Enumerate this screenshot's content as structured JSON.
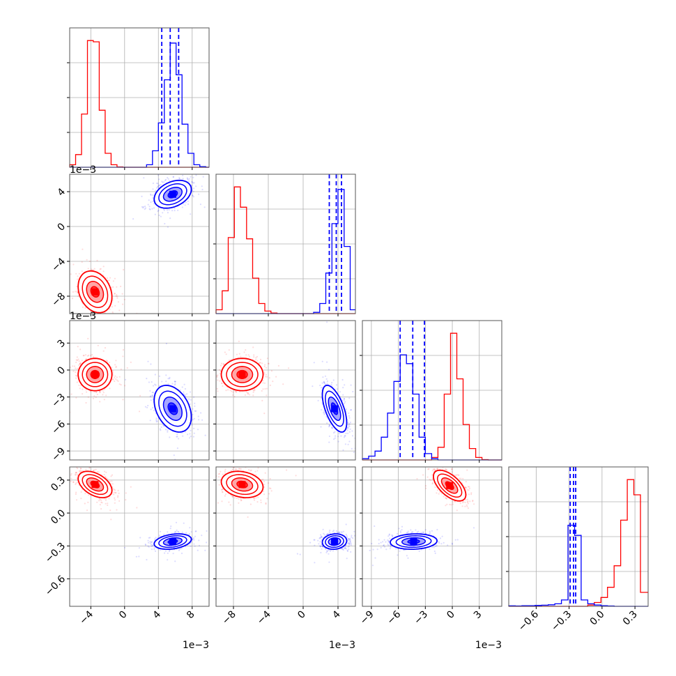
{
  "chart_data": {
    "type": "corner",
    "title": "",
    "n_params": 4,
    "series": [
      {
        "name": "",
        "color": "#ff0000"
      },
      {
        "name": "",
        "color": "#0000ff"
      }
    ],
    "params": [
      {
        "range": [
          -0.0065,
          0.01
        ],
        "ticks": [
          -0.004,
          0,
          0.004,
          0.008
        ],
        "tick_labels": [
          "−4",
          "0",
          "4",
          "8"
        ],
        "multiplier": "1e−3"
      },
      {
        "range": [
          -0.01,
          0.006
        ],
        "ticks": [
          -0.008,
          -0.004,
          0,
          0.004
        ],
        "tick_labels": [
          "−8",
          "−4",
          "0",
          "4"
        ],
        "multiplier": "1e−3"
      },
      {
        "range": [
          -0.01,
          0.0055
        ],
        "ticks": [
          -0.009,
          -0.006,
          -0.003,
          0,
          0.003
        ],
        "tick_labels": [
          "−9",
          "−6",
          "−3",
          "0",
          "3"
        ],
        "multiplier": "1e−3"
      },
      {
        "range": [
          -0.85,
          0.42
        ],
        "ticks": [
          -0.6,
          -0.3,
          0.0,
          0.3
        ],
        "tick_labels": [
          "−0.6",
          "−0.3",
          "0.0",
          "0.3"
        ],
        "multiplier": ""
      }
    ],
    "histograms": [
      {
        "param": 0,
        "edges": [
          -0.0065,
          -0.0058,
          -0.0051,
          -0.0044,
          -0.0037,
          -0.003,
          -0.0023,
          -0.0016,
          -0.0009,
          -0.0002,
          0.0005,
          0.0012,
          0.0019,
          0.0026,
          0.0033,
          0.004,
          0.0047,
          0.0054,
          0.0061,
          0.0068,
          0.0075,
          0.0082,
          0.0089,
          0.0096,
          0.01
        ],
        "red": [
          2,
          10,
          42,
          100,
          99,
          45,
          11,
          2,
          0.3,
          0,
          0,
          0,
          0,
          0,
          0,
          0,
          0,
          0,
          0,
          0,
          0,
          0,
          0,
          0
        ],
        "blue": [
          0,
          0,
          0,
          0,
          0,
          0,
          0,
          0,
          0,
          0,
          0,
          0,
          0,
          2,
          13,
          35,
          69,
          98,
          73,
          34,
          11,
          2,
          0.5,
          0
        ],
        "quantiles_blue": [
          0.0044,
          0.0054,
          0.0064
        ]
      },
      {
        "param": 1,
        "edges": [
          -0.01,
          -0.0093,
          -0.0086,
          -0.0079,
          -0.0072,
          -0.0065,
          -0.0058,
          -0.0051,
          -0.0044,
          -0.0037,
          -0.003,
          -0.0023,
          -0.0016,
          -0.0009,
          -0.0002,
          0.0005,
          0.0012,
          0.0019,
          0.0026,
          0.0033,
          0.004,
          0.0047,
          0.0054,
          0.006
        ],
        "red": [
          3,
          18,
          60,
          100,
          84,
          59,
          28,
          8,
          2,
          0.5,
          0,
          0,
          0,
          0,
          0,
          0,
          0,
          0,
          0,
          0,
          0,
          0,
          0
        ],
        "blue": [
          0,
          0,
          0,
          0,
          0,
          0,
          0,
          0,
          0,
          0,
          0,
          0,
          0,
          0,
          0,
          0,
          1,
          8,
          32,
          71,
          98,
          53,
          3
        ],
        "quantiles_blue": [
          0.003,
          0.0038,
          0.0044
        ]
      },
      {
        "param": 2,
        "edges": [
          -0.01,
          -0.0093,
          -0.0086,
          -0.0079,
          -0.0072,
          -0.0065,
          -0.0058,
          -0.0051,
          -0.0044,
          -0.0037,
          -0.003,
          -0.0023,
          -0.0016,
          -0.0009,
          -0.0002,
          0.0005,
          0.0012,
          0.0019,
          0.0026,
          0.0033,
          0.004,
          0.0047,
          0.0055
        ],
        "red": [
          0,
          0,
          0,
          0,
          0,
          0,
          0,
          0,
          0,
          0,
          0,
          2,
          10,
          52,
          100,
          64,
          28,
          9,
          2,
          0.3,
          0,
          0
        ],
        "blue": [
          1,
          3,
          7,
          18,
          37,
          62,
          83,
          76,
          52,
          18,
          5,
          1,
          0,
          0,
          0,
          0,
          0,
          0,
          0,
          0,
          0,
          0
        ],
        "quantiles_blue": [
          -0.0058,
          -0.0044,
          -0.0031
        ]
      },
      {
        "param": 3,
        "edges": [
          -0.85,
          -0.79,
          -0.73,
          -0.67,
          -0.61,
          -0.55,
          -0.49,
          -0.43,
          -0.37,
          -0.31,
          -0.25,
          -0.19,
          -0.13,
          -0.07,
          -0.01,
          0.05,
          0.11,
          0.17,
          0.23,
          0.29,
          0.35,
          0.42
        ],
        "red": [
          0,
          0,
          0,
          0,
          0,
          0,
          0,
          0,
          0,
          0,
          0,
          0,
          1,
          3,
          7,
          15,
          32,
          68,
          100,
          88,
          11
        ],
        "blue": [
          0.4,
          0.3,
          0.5,
          0.5,
          0.7,
          0.9,
          1.2,
          2,
          5,
          64,
          56,
          5,
          2,
          1,
          0.5,
          0.3,
          0,
          0,
          0,
          0,
          0
        ],
        "quantiles_blue": [
          -0.29,
          -0.26,
          -0.24
        ]
      }
    ],
    "pairs": [
      {
        "row": 1,
        "col": 0,
        "red": {
          "mean": [
            -0.0035,
            -0.0075
          ],
          "sd": [
            0.001,
            0.0012
          ],
          "rho": -0.25
        },
        "blue": {
          "mean": [
            0.0057,
            0.0037
          ],
          "sd": [
            0.0011,
            0.0008
          ],
          "rho": 0.35
        }
      },
      {
        "row": 2,
        "col": 0,
        "red": {
          "mean": [
            -0.0035,
            -0.0005
          ],
          "sd": [
            0.001,
            0.0009
          ],
          "rho": 0.0
        },
        "blue": {
          "mean": [
            0.0057,
            -0.0043
          ],
          "sd": [
            0.0011,
            0.0013
          ],
          "rho": -0.35
        }
      },
      {
        "row": 2,
        "col": 1,
        "red": {
          "mean": [
            -0.007,
            -0.0005
          ],
          "sd": [
            0.0012,
            0.0009
          ],
          "rho": 0.0
        },
        "blue": {
          "mean": [
            0.0036,
            -0.0043
          ],
          "sd": [
            0.0007,
            0.0013
          ],
          "rho": -0.6
        }
      },
      {
        "row": 3,
        "col": 0,
        "red": {
          "mean": [
            -0.0035,
            0.26
          ],
          "sd": [
            0.001,
            0.06
          ],
          "rho": -0.45
        },
        "blue": {
          "mean": [
            0.0057,
            -0.26
          ],
          "sd": [
            0.0011,
            0.035
          ],
          "rho": 0.3
        }
      },
      {
        "row": 3,
        "col": 1,
        "red": {
          "mean": [
            -0.007,
            0.26
          ],
          "sd": [
            0.0012,
            0.06
          ],
          "rho": -0.2
        },
        "blue": {
          "mean": [
            0.0036,
            -0.26
          ],
          "sd": [
            0.0007,
            0.035
          ],
          "rho": 0.1
        }
      },
      {
        "row": 3,
        "col": 2,
        "red": {
          "mean": [
            -0.0003,
            0.25
          ],
          "sd": [
            0.0009,
            0.07
          ],
          "rho": -0.6
        },
        "blue": {
          "mean": [
            -0.0043,
            -0.26
          ],
          "sd": [
            0.0013,
            0.035
          ],
          "rho": 0.1
        }
      }
    ],
    "grid": true,
    "legend": "none"
  }
}
